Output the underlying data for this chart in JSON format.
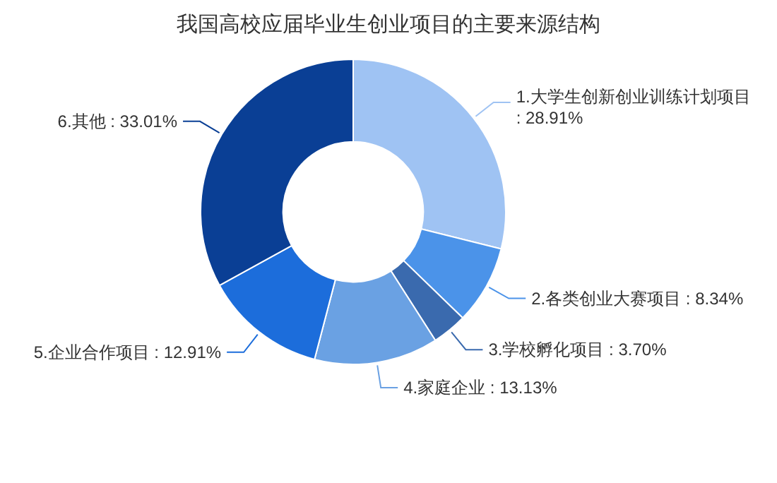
{
  "chart_data": {
    "type": "donut",
    "title": "我国高校应届毕业生创业项目的主要来源结构",
    "categories": [
      "1.大学生创新创业训练计划项目",
      "2.各类创业大赛项目",
      "3.学校孵化项目",
      "4.家庭企业",
      "5.企业合作项目",
      "6.其他"
    ],
    "values": [
      28.91,
      8.34,
      3.7,
      13.13,
      12.91,
      33.01
    ],
    "value_labels": [
      ": 28.91%",
      ": 8.34%",
      ": 3.70%",
      ": 13.13%",
      ": 12.91%",
      ": 33.01%"
    ],
    "colors": [
      "#9fc3f3",
      "#4b93e9",
      "#3a6aae",
      "#6aa1e3",
      "#1c6ddb",
      "#0a3f95"
    ]
  }
}
